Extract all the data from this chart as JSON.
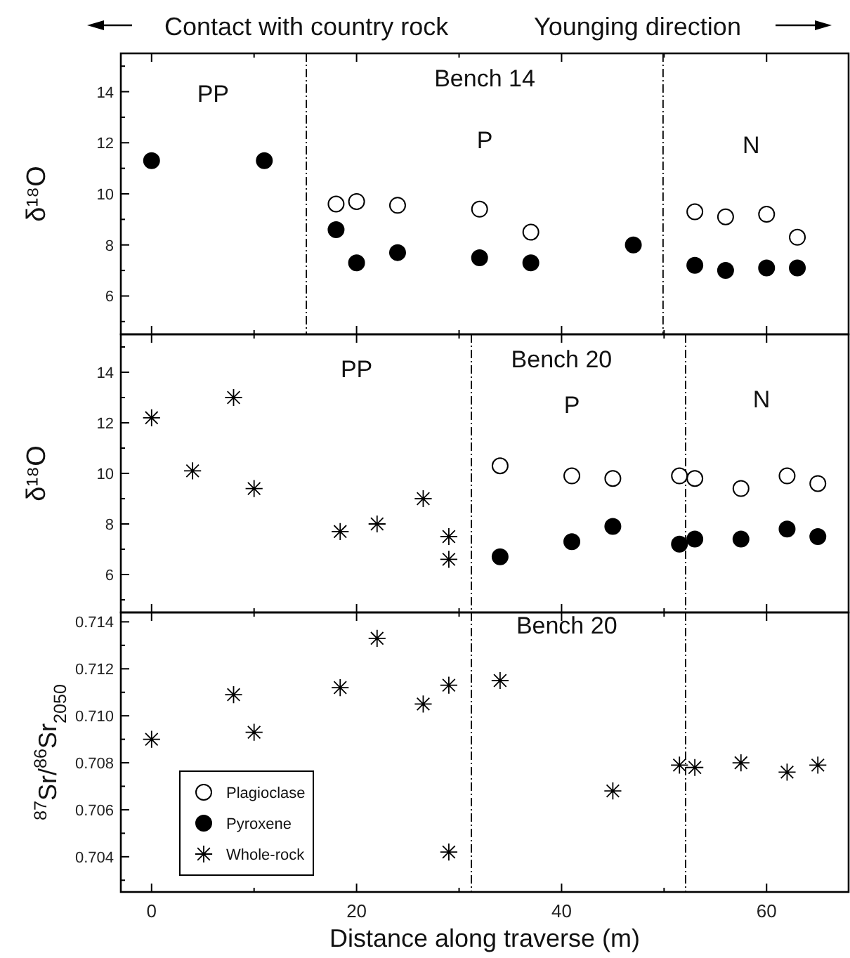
{
  "chart_data": [
    {
      "type": "scatter",
      "ylabel": "δ¹⁸O",
      "xlim": [
        -3,
        68
      ],
      "ylim": [
        4.5,
        15.5
      ],
      "xticks": [
        0,
        {
          "value": 10,
          "label": null
        },
        20,
        {
          "value": 30,
          "label": null
        },
        40,
        {
          "value": 50,
          "label": null
        },
        60
      ],
      "yticks": [
        {
          "value": 5,
          "label": null
        },
        6,
        {
          "value": 7,
          "label": null
        },
        8,
        {
          "value": 9,
          "label": null
        },
        10,
        {
          "value": 11,
          "label": null
        },
        12,
        {
          "value": 13,
          "label": null
        },
        14,
        {
          "value": 15,
          "label": null
        }
      ],
      "tick_labels": "y",
      "grid": false,
      "legend": false,
      "series": [
        {
          "color": "#ffffff",
          "marker": "circle",
          "x": [
            18,
            20,
            24,
            32,
            37,
            53,
            56,
            60,
            63
          ],
          "values": [
            9.6,
            9.7,
            9.55,
            9.4,
            8.5,
            9.3,
            9.1,
            9.2,
            8.3
          ]
        },
        {
          "color": "#000000",
          "marker": "circle",
          "x": [
            0,
            11,
            18,
            20,
            24,
            32,
            37,
            47,
            53,
            56,
            60,
            63
          ],
          "values": [
            11.3,
            11.3,
            8.6,
            7.3,
            7.7,
            7.5,
            7.3,
            8.0,
            7.2,
            7.0,
            7.1,
            7.1
          ]
        }
      ],
      "ref_lines": [
        {
          "axis": "x",
          "value": 15.1,
          "line_style": "dashed"
        },
        {
          "axis": "x",
          "value": 49.9,
          "line_style": "dashed"
        }
      ],
      "annotations": [
        "Contact with country rock",
        "Younging direction",
        "PP",
        "Bench 14",
        "P",
        "N"
      ]
    },
    {
      "type": "scatter",
      "ylabel": "δ¹⁸O",
      "xlim": [
        -3,
        68
      ],
      "ylim": [
        4.5,
        15.5
      ],
      "xticks": [
        0,
        {
          "value": 10,
          "label": null
        },
        20,
        {
          "value": 30,
          "label": null
        },
        40,
        {
          "value": 50,
          "label": null
        },
        60
      ],
      "yticks": [
        {
          "value": 5,
          "label": null
        },
        6,
        {
          "value": 7,
          "label": null
        },
        8,
        {
          "value": 9,
          "label": null
        },
        10,
        {
          "value": 11,
          "label": null
        },
        12,
        {
          "value": 13,
          "label": null
        },
        14,
        {
          "value": 15,
          "label": null
        }
      ],
      "tick_labels": "y",
      "grid": false,
      "legend": false,
      "series": [
        {
          "color": "#000000",
          "marker": "cross",
          "x": [
            0,
            4,
            8,
            10,
            18.4,
            22,
            26.5,
            29,
            29
          ],
          "values": [
            12.2,
            10.1,
            13.0,
            9.4,
            7.7,
            8.0,
            9.0,
            7.5,
            6.6
          ]
        },
        {
          "color": "#ffffff",
          "marker": "circle",
          "x": [
            34,
            41,
            45,
            51.5,
            53,
            57.5,
            62,
            65
          ],
          "values": [
            10.3,
            9.9,
            9.8,
            9.9,
            9.8,
            9.4,
            9.9,
            9.6
          ]
        },
        {
          "color": "#000000",
          "marker": "circle",
          "x": [
            34,
            41,
            45,
            51.5,
            53,
            57.5,
            62,
            65
          ],
          "values": [
            6.7,
            7.3,
            7.9,
            7.2,
            7.4,
            7.4,
            7.8,
            7.5
          ]
        }
      ],
      "ref_lines": [
        {
          "axis": "x",
          "value": 31.2,
          "line_style": "dashed"
        },
        {
          "axis": "x",
          "value": 52.1,
          "line_style": "dashed"
        }
      ],
      "annotations": [
        "PP",
        "Bench 20",
        "P",
        "N"
      ]
    },
    {
      "type": "scatter",
      "xlabel": "Distance along traverse (m)",
      "ylabel": "$^{87}$Sr/$^{86}$Sr$_{2050}$",
      "xlim": [
        -3,
        68
      ],
      "ylim": [
        0.7025,
        0.7144
      ],
      "xticks": [
        0,
        {
          "value": 10,
          "label": null
        },
        20,
        {
          "value": 30,
          "label": null
        },
        40,
        {
          "value": 50,
          "label": null
        },
        60
      ],
      "yticks": [
        {
          "value": 0.703,
          "label": null
        },
        0.704,
        {
          "value": 0.705,
          "label": null
        },
        0.706,
        {
          "value": 0.707,
          "label": null
        },
        0.708,
        {
          "value": 0.709,
          "label": null
        },
        {
          "value": 0.71,
          "label": "0.710"
        },
        {
          "value": 0.711,
          "label": null
        },
        0.712,
        {
          "value": 0.713,
          "label": null
        },
        0.714
      ],
      "grid": false,
      "legend": "bottom left",
      "series": [
        {
          "name": "Plagioclase",
          "color": "#ffffff",
          "marker": "circle"
        },
        {
          "name": "Pyroxene",
          "color": "#000000",
          "marker": "circle"
        },
        {
          "name": "Whole-rock",
          "color": "#000000",
          "marker": "cross",
          "x": [
            0,
            8,
            10,
            18.4,
            22,
            26.5,
            29,
            29,
            34,
            45,
            51.5,
            53,
            57.5,
            62,
            65
          ],
          "values": [
            0.709,
            0.7109,
            0.7093,
            0.7112,
            0.7133,
            0.7105,
            0.7113,
            0.7042,
            0.7115,
            0.7068,
            0.7079,
            0.7078,
            0.708,
            0.7076,
            0.7079
          ]
        }
      ],
      "ref_lines": [
        {
          "axis": "x",
          "value": 31.2,
          "line_style": "dashed"
        },
        {
          "axis": "x",
          "value": 52.1,
          "line_style": "dashed"
        }
      ],
      "annotations": [
        "Bench 20"
      ]
    }
  ]
}
